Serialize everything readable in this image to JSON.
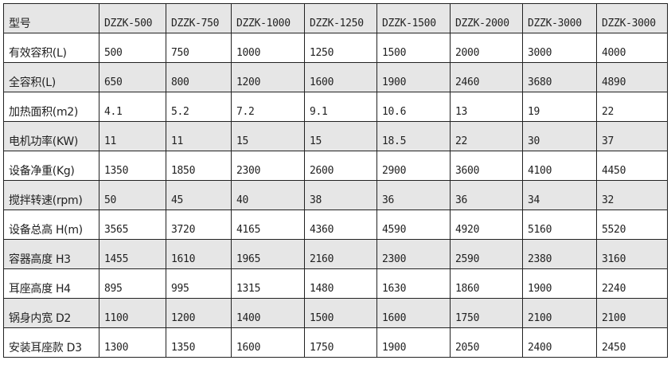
{
  "table": {
    "header": [
      "型号",
      "DZZK-500",
      "DZZK-750",
      "DZZK-1000",
      "DZZK-1250",
      "DZZK-1500",
      "DZZK-2000",
      "DZZK-3000",
      "DZZK-3000"
    ],
    "rows": [
      [
        "有效容积(L)",
        "500",
        "750",
        "1000",
        "1250",
        "1500",
        "2000",
        "3000",
        "4000"
      ],
      [
        "全容积(L)",
        "650",
        "800",
        "1200",
        "1600",
        "1900",
        "2460",
        "3680",
        "4890"
      ],
      [
        "加热面积(m2)",
        "4.1",
        "5.2",
        "7.2",
        "9.1",
        "10.6",
        "13",
        "19",
        "22"
      ],
      [
        "电机功率(KW)",
        "11",
        "11",
        "15",
        "15",
        "18.5",
        "22",
        "30",
        "37"
      ],
      [
        "设备净重(Kg)",
        "1350",
        "1850",
        "2300",
        "2600",
        "2900",
        "3600",
        "4100",
        "4450"
      ],
      [
        "搅拌转速(rpm)",
        "50",
        "45",
        "40",
        "38",
        "36",
        "36",
        "34",
        "32"
      ],
      [
        "设备总高 H(m)",
        "3565",
        "3720",
        "4165",
        "4360",
        "4590",
        "4920",
        "5160",
        "5520"
      ],
      [
        "容器高度 H3",
        "1455",
        "1610",
        "1965",
        "2160",
        "2300",
        "2590",
        "2380",
        "3160"
      ],
      [
        "耳座高度 H4",
        "895",
        "995",
        "1315",
        "1480",
        "1630",
        "1860",
        "1900",
        "2240"
      ],
      [
        "锅身内宽 D2",
        "1100",
        "1200",
        "1400",
        "1500",
        "1600",
        "1750",
        "2100",
        "2100"
      ],
      [
        "安装耳座款 D3",
        "1300",
        "1350",
        "1600",
        "1750",
        "1900",
        "2050",
        "2400",
        "2450"
      ]
    ],
    "colors": {
      "gray_row": "#e6e6e6",
      "border": "#222222"
    }
  }
}
